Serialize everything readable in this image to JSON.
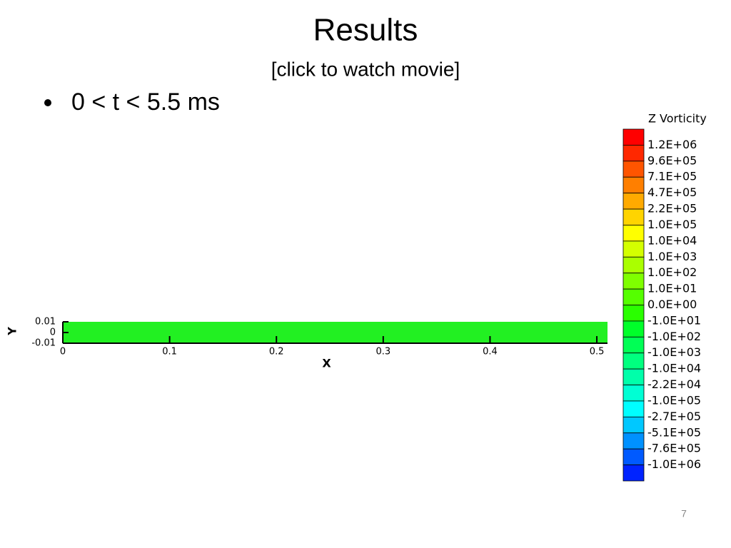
{
  "slide": {
    "title": "Results",
    "link": "[click to watch movie]",
    "bullets": [
      "0 < t < 5.5 ms"
    ],
    "page_number": "7",
    "plot": {
      "xlabel": "X",
      "ylabel": "Y",
      "xlim": [
        0,
        0.51
      ],
      "ylim": [
        -0.01,
        0.01
      ],
      "xticks": [
        0,
        0.1,
        0.2,
        0.3,
        0.4,
        0.5
      ],
      "yticks": [
        0.01,
        0,
        -0.01
      ],
      "field_color": "#22f022"
    },
    "colorbar": {
      "title": "Z Vorticity",
      "levels": [
        "1.2E+06",
        "9.6E+05",
        "7.1E+05",
        "4.7E+05",
        "2.2E+05",
        "1.0E+05",
        "1.0E+04",
        "1.0E+03",
        "1.0E+02",
        "1.0E+01",
        "0.0E+00",
        "-1.0E+01",
        "-1.0E+02",
        "-1.0E+03",
        "-1.0E+04",
        "-2.2E+04",
        "-1.0E+05",
        "-2.7E+05",
        "-5.1E+05",
        "-7.6E+05",
        "-1.0E+06"
      ],
      "colors": [
        "#ff0000",
        "#ff2800",
        "#ff5500",
        "#ff7f00",
        "#ffaa00",
        "#ffd400",
        "#ffff00",
        "#d4ff00",
        "#aaff00",
        "#7fff00",
        "#55ff00",
        "#2aff00",
        "#00ff2a",
        "#00ff55",
        "#00ff7f",
        "#00ffaa",
        "#00ffd4",
        "#00ffff",
        "#00c8ff",
        "#0091ff",
        "#005aff",
        "#0023ff"
      ]
    }
  }
}
